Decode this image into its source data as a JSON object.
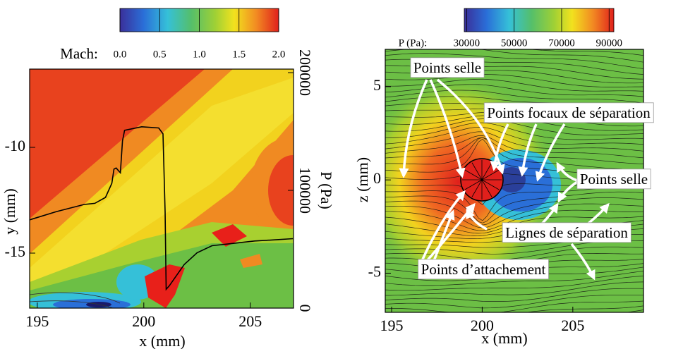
{
  "chart_data": [
    {
      "type": "line",
      "xlabel": "x (mm)",
      "ylabel": "y (mm)",
      "y2label": "P (Pa)",
      "xlim": [
        194.64,
        207.03
      ],
      "ylim": [
        -17.6,
        -6.3
      ],
      "y2lim": [
        0,
        203000
      ],
      "xticks": [
        195,
        200,
        205
      ],
      "yticks": [
        -10,
        -15
      ],
      "y2ticks": [
        0,
        100000,
        200000
      ],
      "colorbar": {
        "label": "Mach:",
        "lim": [
          0,
          2
        ],
        "ticks": [
          {
            "value": 0,
            "label": "0.0"
          },
          0.5,
          {
            "value": 1,
            "label": "1.0"
          },
          1.5,
          {
            "value": 2,
            "label": "2.0"
          }
        ]
      },
      "x": [
        194.64,
        195.9,
        197.2,
        197.7,
        198.2,
        198.5,
        198.6,
        198.7,
        198.9,
        199.0,
        199.1,
        199.9,
        200.7,
        200.9,
        201.0,
        201.05,
        201.2,
        201.9,
        202.5,
        203.2,
        204.2,
        205.2,
        206.2,
        207.0
      ],
      "series": [
        {
          "color": "#000000",
          "axis": "y2",
          "values": [
            75000,
            82000,
            88000,
            89000,
            94000,
            106000,
            118000,
            119000,
            115000,
            142000,
            151000,
            154000,
            153000,
            148000,
            82000,
            16000,
            19000,
            37000,
            47000,
            53000,
            55000,
            57000,
            58000,
            59000
          ]
        }
      ]
    },
    {
      "type": "contour",
      "xlabel": "x (mm)",
      "ylabel": "z (mm)",
      "xlim": [
        194.65,
        208.9
      ],
      "ylim": [
        -7.1,
        7.0
      ],
      "xticks": [
        195,
        200,
        205
      ],
      "yticks": [
        -5,
        0,
        5
      ],
      "colorbar": {
        "label": "P (Pa):",
        "lim": [
          29000,
          92000
        ],
        "ticks": [
          30000,
          50000,
          70000,
          90000
        ]
      },
      "annotations": [
        "Points selle",
        "Points focaux de séparation",
        "Points selle",
        "Lignes de séparation",
        "Points d’attachement"
      ]
    }
  ]
}
